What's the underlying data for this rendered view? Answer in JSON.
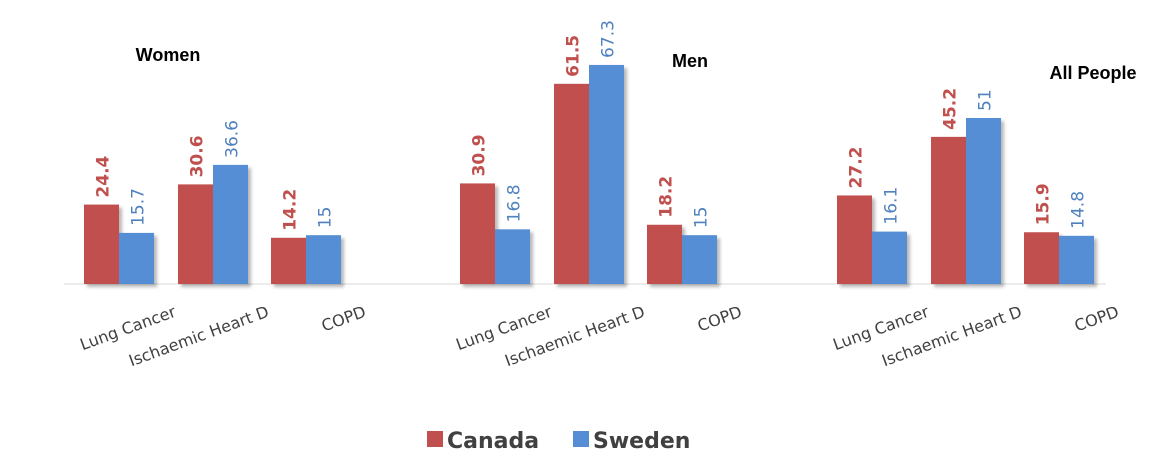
{
  "chart_data": {
    "type": "bar",
    "groups": [
      {
        "title": "Women",
        "categories": [
          "Lung Cancer",
          "Ischaemic Heart D",
          "COPD"
        ],
        "series": [
          {
            "name": "Canada",
            "values": [
              24.4,
              30.6,
              14.2
            ],
            "labels": [
              "24.4",
              "30.6",
              "14.2"
            ]
          },
          {
            "name": "Sweden",
            "values": [
              15.7,
              36.6,
              15
            ],
            "labels": [
              "15.7",
              "36.6",
              "15"
            ]
          }
        ]
      },
      {
        "title": "Men",
        "categories": [
          "Lung Cancer",
          "Ischaemic Heart D",
          "COPD"
        ],
        "series": [
          {
            "name": "Canada",
            "values": [
              30.9,
              61.5,
              18.2
            ],
            "labels": [
              "30.9",
              "61.5",
              "18.2"
            ]
          },
          {
            "name": "Sweden",
            "values": [
              16.8,
              67.3,
              15
            ],
            "labels": [
              "16.8",
              "67.3",
              "15"
            ]
          }
        ]
      },
      {
        "title": "All People",
        "categories": [
          "Lung Cancer",
          "Ischaemic Heart D",
          "COPD"
        ],
        "series": [
          {
            "name": "Canada",
            "values": [
              27.2,
              45.2,
              15.9
            ],
            "labels": [
              "27.2",
              "45.2",
              "15.9"
            ]
          },
          {
            "name": "Sweden",
            "values": [
              16.1,
              51,
              14.8
            ],
            "labels": [
              "16.1",
              "51",
              "14.8"
            ]
          }
        ]
      }
    ],
    "colors": {
      "Canada": "#C0504D",
      "Sweden": "#558ED5"
    },
    "label_colors": {
      "Canada": "#C0504D",
      "Sweden": "#4F81BD"
    },
    "legend": {
      "position": "bottom",
      "entries": [
        "Canada",
        "Sweden"
      ]
    },
    "ylim": [
      0,
      70
    ],
    "grid": false,
    "xlabel": "",
    "ylabel": ""
  }
}
